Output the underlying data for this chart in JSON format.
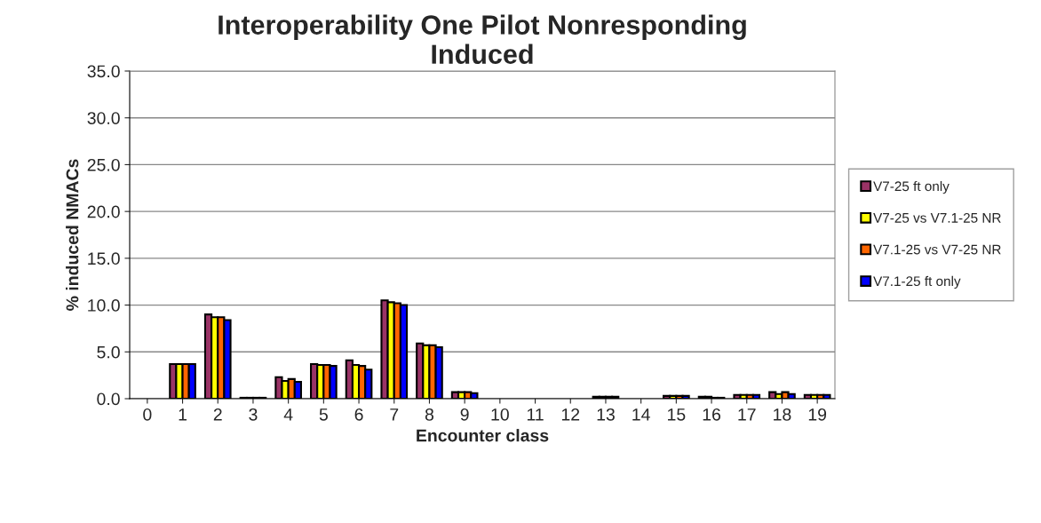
{
  "chart_data": {
    "type": "bar",
    "title": "Interoperability One Pilot Nonresponding\nInduced",
    "xlabel": "Encounter class",
    "ylabel": "% induced NMACs",
    "categories": [
      "0",
      "1",
      "2",
      "3",
      "4",
      "5",
      "6",
      "7",
      "8",
      "9",
      "10",
      "11",
      "12",
      "13",
      "14",
      "15",
      "16",
      "17",
      "18",
      "19"
    ],
    "series": [
      {
        "name": "V7-25 ft only",
        "color": "#993366",
        "values": [
          0,
          3.7,
          9.0,
          0.1,
          2.3,
          3.7,
          4.1,
          10.5,
          5.9,
          0.7,
          0,
          0,
          0,
          0.2,
          0,
          0.3,
          0.2,
          0.4,
          0.7,
          0.4
        ]
      },
      {
        "name": "V7-25 vs V7.1-25 NR",
        "color": "#ffff00",
        "values": [
          0,
          3.7,
          8.7,
          0.1,
          1.9,
          3.6,
          3.6,
          10.3,
          5.7,
          0.7,
          0,
          0,
          0,
          0.2,
          0,
          0.3,
          0.2,
          0.4,
          0.5,
          0.4
        ]
      },
      {
        "name": "V7.1-25 vs V7-25 NR",
        "color": "#ff6600",
        "values": [
          0,
          3.7,
          8.7,
          0.1,
          2.1,
          3.6,
          3.5,
          10.2,
          5.7,
          0.7,
          0,
          0,
          0,
          0.2,
          0,
          0.3,
          0.1,
          0.4,
          0.7,
          0.4
        ]
      },
      {
        "name": "V7.1-25 ft only",
        "color": "#0000ff",
        "values": [
          0,
          3.7,
          8.4,
          0.1,
          1.8,
          3.5,
          3.1,
          10.0,
          5.5,
          0.6,
          0,
          0,
          0,
          0.2,
          0,
          0.3,
          0.1,
          0.4,
          0.5,
          0.4
        ]
      }
    ],
    "ylim": [
      0,
      35
    ],
    "yticks": [
      {
        "value": 0,
        "label": "0.0"
      },
      {
        "value": 5,
        "label": "5.0"
      },
      {
        "value": 10,
        "label": "10.0"
      },
      {
        "value": 15,
        "label": "15.0"
      },
      {
        "value": 20,
        "label": "20.0"
      },
      {
        "value": 25,
        "label": "25.0"
      },
      {
        "value": 30,
        "label": "30.0"
      },
      {
        "value": 35,
        "label": "35.0"
      }
    ],
    "grid": "y",
    "legend": "right"
  }
}
